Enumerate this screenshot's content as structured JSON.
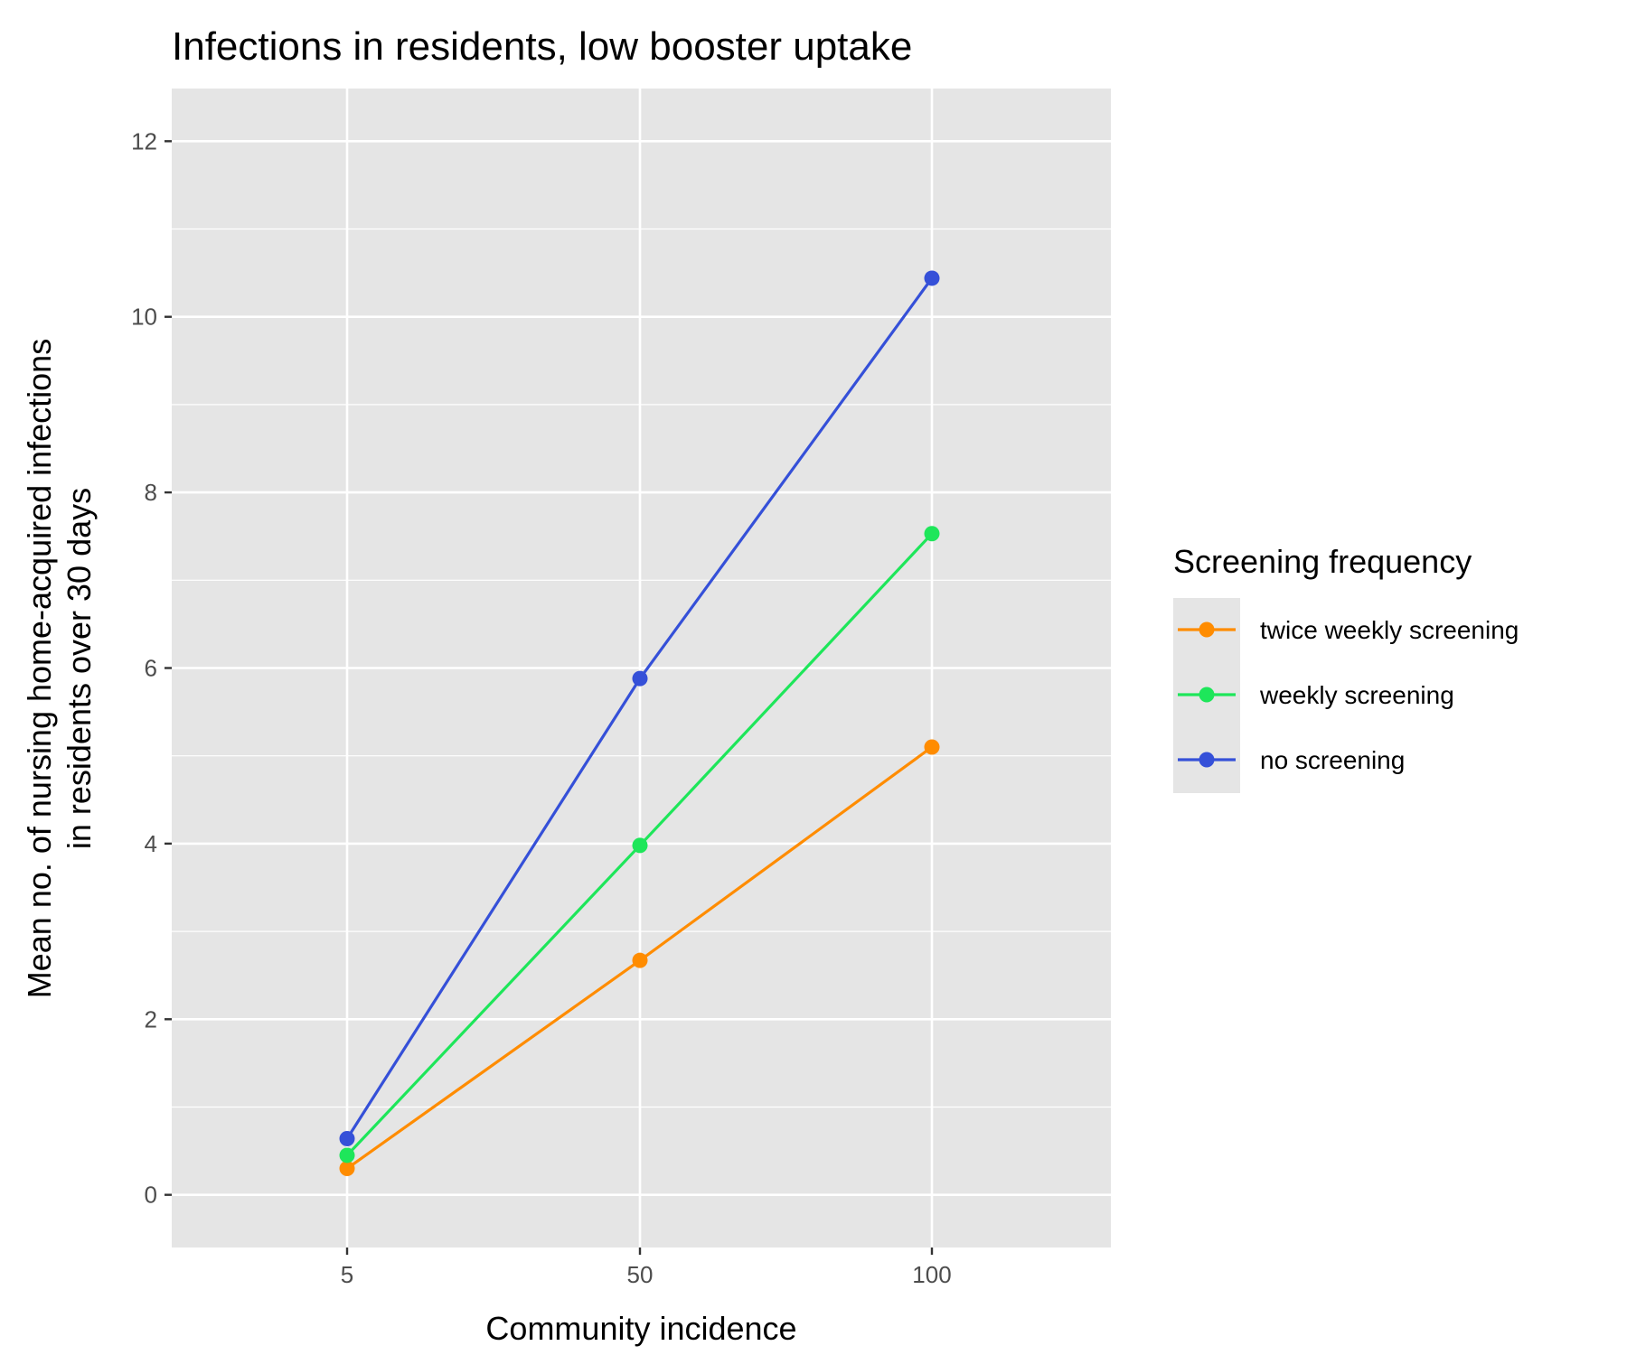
{
  "chart_data": {
    "type": "line",
    "title": "Infections in residents, low booster uptake",
    "xlabel": "Community incidence",
    "ylabel_lines": [
      "Mean no. of nursing home-acquired infections",
      "in residents over 30 days"
    ],
    "categories": [
      "5",
      "50",
      "100"
    ],
    "ylim": [
      0,
      12
    ],
    "yticks": [
      0,
      2,
      4,
      6,
      8,
      10,
      12
    ],
    "ytick_labels": [
      "0",
      "2",
      "4",
      "6",
      "8",
      "10",
      "12"
    ],
    "grid": true,
    "legend": {
      "title": "Screening frequency",
      "placement": "right"
    },
    "series": [
      {
        "name": "twice weekly screening",
        "color": "#FF8C00",
        "values": [
          0.3,
          2.67,
          5.1
        ]
      },
      {
        "name": "weekly screening",
        "color": "#1EE65A",
        "values": [
          0.45,
          3.98,
          7.53
        ]
      },
      {
        "name": "no screening",
        "color": "#3550D8",
        "values": [
          0.64,
          5.88,
          10.44
        ]
      }
    ]
  },
  "colors": {
    "panel_background": "#E5E5E5",
    "grid_line": "#FFFFFF",
    "tick_mark": "#333333"
  }
}
